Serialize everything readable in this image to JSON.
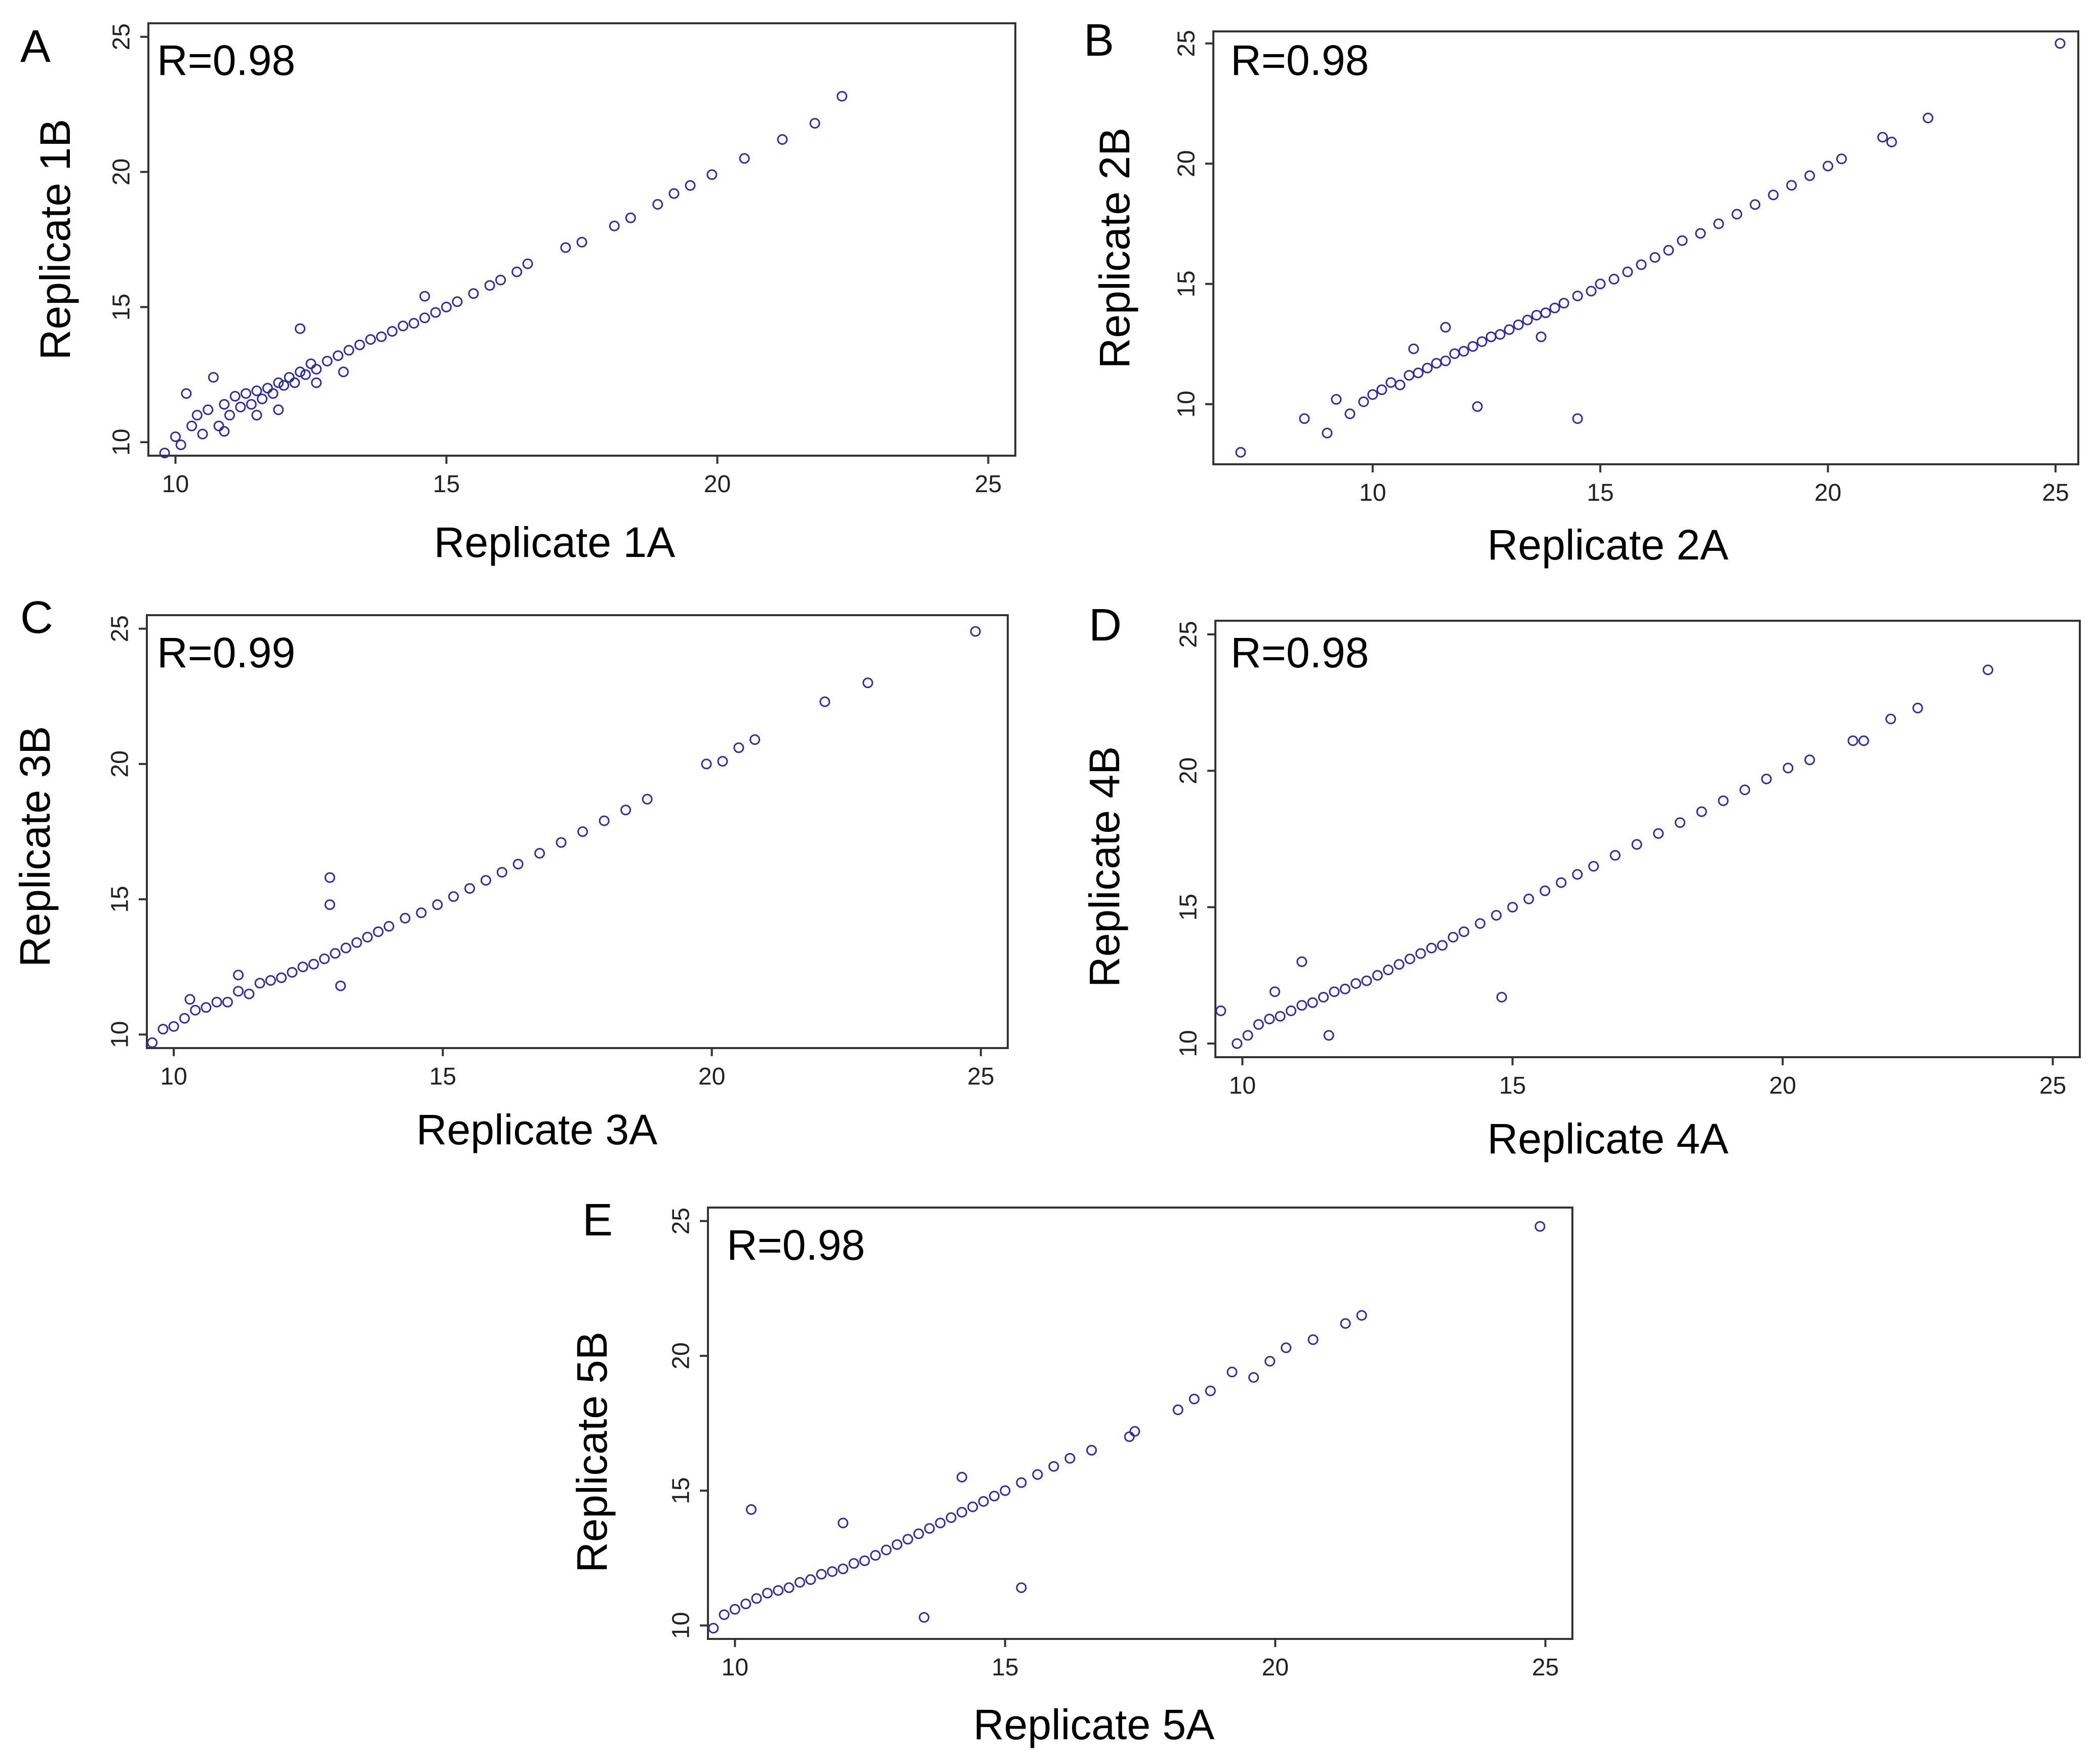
{
  "figure": {
    "panel_count": 5
  },
  "colors": {
    "point": "#2b2bb0",
    "frame": "#333333",
    "text": "#000000"
  },
  "chart_data": [
    {
      "type": "scatter",
      "panel": "A",
      "annotation": "R=0.98",
      "xlabel": "Replicate 1A",
      "ylabel": "Replicate 1B",
      "xlim": [
        9.5,
        25.5
      ],
      "ylim": [
        9.5,
        25.5
      ],
      "xticks": [
        10,
        15,
        20,
        25
      ],
      "yticks": [
        10,
        15,
        20,
        25
      ],
      "x": [
        9.8,
        10.0,
        10.1,
        10.3,
        10.4,
        10.5,
        10.6,
        10.8,
        10.9,
        11.0,
        11.1,
        11.2,
        11.3,
        11.4,
        11.5,
        11.6,
        11.7,
        11.8,
        11.9,
        12.0,
        12.1,
        12.2,
        12.3,
        12.4,
        12.5,
        12.6,
        12.8,
        13.0,
        13.2,
        13.4,
        13.6,
        13.8,
        14.0,
        14.2,
        14.4,
        14.6,
        14.8,
        15.0,
        15.2,
        15.5,
        15.8,
        16.0,
        16.3,
        16.5,
        17.2,
        17.5,
        18.1,
        18.4,
        18.9,
        19.2,
        19.5,
        19.9,
        20.5,
        21.2,
        21.8,
        22.3,
        10.2,
        10.7,
        11.5,
        12.3,
        11.9,
        10.9,
        12.6,
        13.1,
        14.6
      ],
      "y": [
        9.6,
        10.2,
        9.9,
        10.6,
        11.0,
        10.3,
        11.2,
        10.6,
        11.4,
        11.0,
        11.7,
        11.3,
        11.8,
        11.4,
        11.9,
        11.6,
        12.0,
        11.8,
        12.2,
        12.1,
        12.4,
        12.2,
        12.6,
        12.5,
        12.9,
        12.7,
        13.0,
        13.2,
        13.4,
        13.6,
        13.8,
        13.9,
        14.1,
        14.3,
        14.4,
        14.6,
        14.8,
        15.0,
        15.2,
        15.5,
        15.8,
        16.0,
        16.3,
        16.6,
        17.2,
        17.4,
        18.0,
        18.3,
        18.8,
        19.2,
        19.5,
        19.9,
        20.5,
        21.2,
        21.8,
        22.8,
        11.8,
        12.4,
        11.0,
        14.2,
        11.2,
        10.4,
        12.2,
        12.6,
        15.4
      ]
    },
    {
      "type": "scatter",
      "panel": "B",
      "annotation": "R=0.98",
      "xlabel": "Replicate 2A",
      "ylabel": "Replicate 2B",
      "xlim": [
        6.5,
        25.5
      ],
      "ylim": [
        7.5,
        25.5
      ],
      "xticks": [
        10,
        15,
        20,
        25
      ],
      "yticks": [
        10,
        15,
        20,
        25
      ],
      "x": [
        7.1,
        8.5,
        9.0,
        9.2,
        9.5,
        9.8,
        10.0,
        10.2,
        10.4,
        10.6,
        10.8,
        11.0,
        11.2,
        11.4,
        11.6,
        11.8,
        12.0,
        12.2,
        12.4,
        12.6,
        12.8,
        13.0,
        13.2,
        13.4,
        13.6,
        13.8,
        14.0,
        14.2,
        14.5,
        14.8,
        15.0,
        15.3,
        15.6,
        15.9,
        16.2,
        16.5,
        16.8,
        17.2,
        17.6,
        18.0,
        18.4,
        18.8,
        19.2,
        19.6,
        20.0,
        20.3,
        21.2,
        21.4,
        22.2,
        25.1,
        12.3,
        14.5,
        10.9,
        11.6,
        13.7
      ],
      "y": [
        8.0,
        9.4,
        8.8,
        10.2,
        9.6,
        10.1,
        10.4,
        10.6,
        10.9,
        10.8,
        11.2,
        11.3,
        11.5,
        11.7,
        11.8,
        12.1,
        12.2,
        12.4,
        12.6,
        12.8,
        12.9,
        13.1,
        13.3,
        13.5,
        13.7,
        13.8,
        14.0,
        14.2,
        14.5,
        14.7,
        15.0,
        15.2,
        15.5,
        15.8,
        16.1,
        16.4,
        16.8,
        17.1,
        17.5,
        17.9,
        18.3,
        18.7,
        19.1,
        19.5,
        19.9,
        20.2,
        21.1,
        20.9,
        21.9,
        25.0,
        9.9,
        9.4,
        12.3,
        13.2,
        12.8
      ]
    },
    {
      "type": "scatter",
      "panel": "C",
      "annotation": "R=0.99",
      "xlabel": "Replicate 3A",
      "ylabel": "Replicate 3B",
      "xlim": [
        9.5,
        25.5
      ],
      "ylim": [
        9.5,
        25.5
      ],
      "xticks": [
        10,
        15,
        20,
        25
      ],
      "yticks": [
        10,
        15,
        20,
        25
      ],
      "x": [
        9.6,
        9.8,
        10.0,
        10.2,
        10.4,
        10.6,
        10.8,
        11.0,
        11.2,
        11.4,
        11.6,
        11.8,
        12.0,
        12.2,
        12.4,
        12.6,
        12.8,
        13.0,
        13.2,
        13.4,
        13.6,
        13.8,
        14.0,
        14.3,
        14.6,
        14.9,
        15.2,
        15.5,
        15.8,
        16.1,
        16.4,
        16.8,
        17.2,
        17.6,
        18.0,
        18.4,
        18.8,
        19.9,
        20.2,
        20.5,
        20.8,
        22.1,
        22.9,
        24.9,
        12.9,
        13.1,
        12.9,
        10.3,
        11.2
      ],
      "y": [
        9.7,
        10.2,
        10.3,
        10.6,
        10.9,
        11.0,
        11.2,
        11.2,
        11.6,
        11.5,
        11.9,
        12.0,
        12.1,
        12.3,
        12.5,
        12.6,
        12.8,
        13.0,
        13.2,
        13.4,
        13.6,
        13.8,
        14.0,
        14.3,
        14.5,
        14.8,
        15.1,
        15.4,
        15.7,
        16.0,
        16.3,
        16.7,
        17.1,
        17.5,
        17.9,
        18.3,
        18.7,
        20.0,
        20.1,
        20.6,
        20.9,
        22.3,
        23.0,
        24.9,
        15.8,
        11.8,
        14.8,
        11.3,
        12.2
      ]
    },
    {
      "type": "scatter",
      "panel": "D",
      "annotation": "R=0.98",
      "xlabel": "Replicate 4A",
      "ylabel": "Replicate 4B",
      "xlim": [
        9.5,
        25.5
      ],
      "ylim": [
        9.5,
        25.5
      ],
      "xticks": [
        10,
        15,
        20,
        25
      ],
      "yticks": [
        10,
        15,
        20,
        25
      ],
      "x": [
        9.6,
        9.9,
        10.1,
        10.3,
        10.5,
        10.7,
        10.9,
        11.1,
        11.3,
        11.5,
        11.7,
        11.9,
        12.1,
        12.3,
        12.5,
        12.7,
        12.9,
        13.1,
        13.3,
        13.5,
        13.7,
        13.9,
        14.1,
        14.4,
        14.7,
        15.0,
        15.3,
        15.6,
        15.9,
        16.2,
        16.5,
        16.9,
        17.3,
        17.7,
        18.1,
        18.5,
        18.9,
        19.3,
        19.7,
        20.1,
        20.5,
        21.3,
        21.5,
        22.0,
        22.5,
        23.8,
        11.1,
        14.8,
        11.6,
        10.6
      ],
      "y": [
        11.2,
        10.0,
        10.3,
        10.7,
        10.9,
        11.0,
        11.2,
        11.4,
        11.5,
        11.7,
        11.9,
        12.0,
        12.2,
        12.3,
        12.5,
        12.7,
        12.9,
        13.1,
        13.3,
        13.5,
        13.6,
        13.9,
        14.1,
        14.4,
        14.7,
        15.0,
        15.3,
        15.6,
        15.9,
        16.2,
        16.5,
        16.9,
        17.3,
        17.7,
        18.1,
        18.5,
        18.9,
        19.3,
        19.7,
        20.1,
        20.4,
        21.1,
        21.1,
        21.9,
        22.3,
        23.7,
        13.0,
        11.7,
        10.3,
        11.9
      ]
    },
    {
      "type": "scatter",
      "panel": "E",
      "annotation": "R=0.98",
      "xlabel": "Replicate 5A",
      "ylabel": "Replicate 5B",
      "xlim": [
        9.5,
        25.5
      ],
      "ylim": [
        9.5,
        25.5
      ],
      "xticks": [
        10,
        15,
        20,
        25
      ],
      "yticks": [
        10,
        15,
        20,
        25
      ],
      "x": [
        9.6,
        9.8,
        10.0,
        10.2,
        10.4,
        10.6,
        10.8,
        11.0,
        11.2,
        11.4,
        11.6,
        11.8,
        12.0,
        12.2,
        12.4,
        12.6,
        12.8,
        13.0,
        13.2,
        13.4,
        13.6,
        13.8,
        14.0,
        14.2,
        14.4,
        14.6,
        14.8,
        15.0,
        15.3,
        15.6,
        15.9,
        16.2,
        16.6,
        17.3,
        17.4,
        18.2,
        18.5,
        18.8,
        19.2,
        19.6,
        19.9,
        20.2,
        20.7,
        21.3,
        21.6,
        24.9,
        10.3,
        12.0,
        14.2,
        15.3,
        13.5
      ],
      "y": [
        9.9,
        10.4,
        10.6,
        10.8,
        11.0,
        11.2,
        11.3,
        11.4,
        11.6,
        11.7,
        11.9,
        12.0,
        12.1,
        12.3,
        12.4,
        12.6,
        12.8,
        13.0,
        13.2,
        13.4,
        13.6,
        13.8,
        14.0,
        14.2,
        14.4,
        14.6,
        14.8,
        15.0,
        15.3,
        15.6,
        15.9,
        16.2,
        16.5,
        17.0,
        17.2,
        18.0,
        18.4,
        18.7,
        19.4,
        19.2,
        19.8,
        20.3,
        20.6,
        21.2,
        21.5,
        24.8,
        14.3,
        13.8,
        15.5,
        11.4,
        10.3
      ]
    }
  ]
}
